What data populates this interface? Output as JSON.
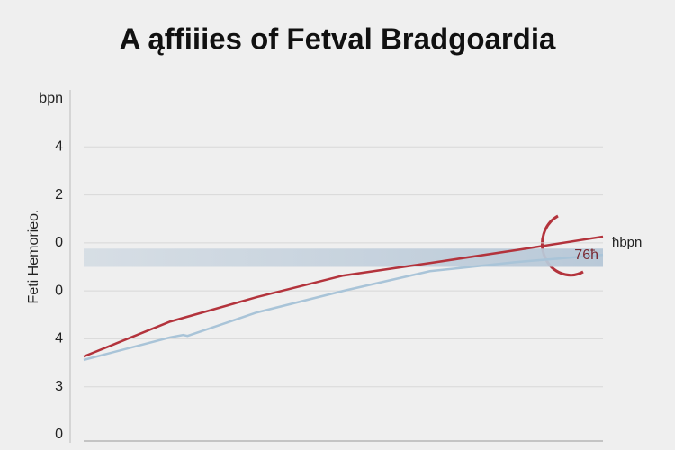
{
  "chart_data": {
    "type": "line",
    "title": "A ąffiiies of Fetval Bradgoardia",
    "ylabel": "Feti Hemorieo.",
    "xlim": [
      0,
      6
    ],
    "ylim": [
      0,
      7
    ],
    "yticks": [
      {
        "value": 7,
        "label": "bpn"
      },
      {
        "value": 6,
        "label": "4"
      },
      {
        "value": 5,
        "label": "2"
      },
      {
        "value": 4,
        "label": "0"
      },
      {
        "value": 3,
        "label": "0"
      },
      {
        "value": 2,
        "label": "4"
      },
      {
        "value": 1,
        "label": "3"
      },
      0
    ],
    "grid": true,
    "band": {
      "ylim": [
        3.5,
        3.88
      ],
      "color": "#b9c9d8"
    },
    "series": [
      {
        "name": "ħbpn",
        "color": "#b3333c",
        "x": [
          0,
          1,
          2,
          3,
          4,
          5,
          6
        ],
        "values": [
          1.63,
          2.36,
          2.87,
          3.32,
          3.58,
          3.85,
          4.13
        ]
      },
      {
        "name": "76ħ",
        "color": "#a9c4d8",
        "x": [
          0,
          1,
          1.15,
          1.2,
          2,
          3,
          4,
          5,
          6
        ],
        "values": [
          1.56,
          2.03,
          2.08,
          2.06,
          2.55,
          3.0,
          3.41,
          3.6,
          3.75
        ]
      }
    ]
  }
}
